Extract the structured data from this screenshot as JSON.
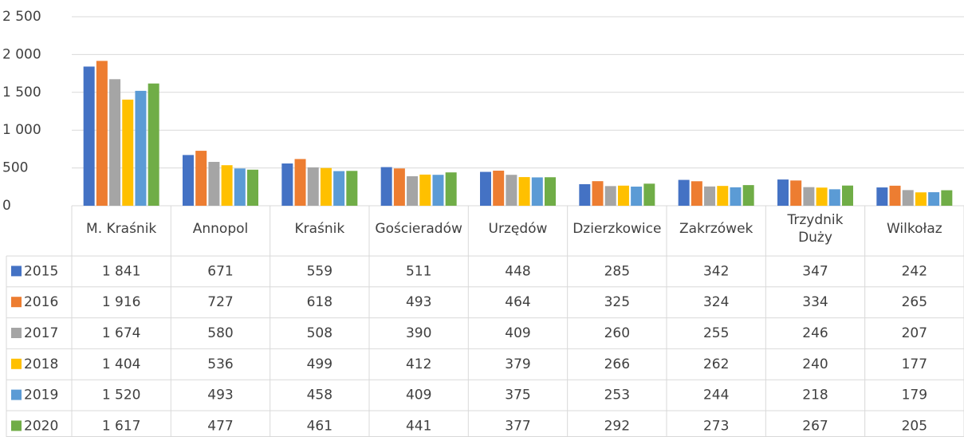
{
  "chart_data": {
    "type": "bar",
    "categories": [
      "M. Kraśnik",
      "Annopol",
      "Kraśnik",
      "Gościeradów",
      "Urzędów",
      "Dzierzkowice",
      "Zakrzówek",
      "Trzydnik Duży",
      "Wilkołaz"
    ],
    "series": [
      {
        "name": "2015",
        "color": "#4472c4",
        "values": [
          1841,
          671,
          559,
          511,
          448,
          285,
          342,
          347,
          242
        ],
        "value_labels": [
          "1 841",
          "671",
          "559",
          "511",
          "448",
          "285",
          "342",
          "347",
          "242"
        ]
      },
      {
        "name": "2016",
        "color": "#ed7d31",
        "values": [
          1916,
          727,
          618,
          493,
          464,
          325,
          324,
          334,
          265
        ],
        "value_labels": [
          "1 916",
          "727",
          "618",
          "493",
          "464",
          "325",
          "324",
          "334",
          "265"
        ]
      },
      {
        "name": "2017",
        "color": "#a5a5a5",
        "values": [
          1674,
          580,
          508,
          390,
          409,
          260,
          255,
          246,
          207
        ],
        "value_labels": [
          "1 674",
          "580",
          "508",
          "390",
          "409",
          "260",
          "255",
          "246",
          "207"
        ]
      },
      {
        "name": "2018",
        "color": "#ffc000",
        "values": [
          1404,
          536,
          499,
          412,
          379,
          266,
          262,
          240,
          177
        ],
        "value_labels": [
          "1 404",
          "536",
          "499",
          "412",
          "379",
          "266",
          "262",
          "240",
          "177"
        ]
      },
      {
        "name": "2019",
        "color": "#5b9bd5",
        "values": [
          1520,
          493,
          458,
          409,
          375,
          253,
          244,
          218,
          179
        ],
        "value_labels": [
          "1 520",
          "493",
          "458",
          "409",
          "375",
          "253",
          "244",
          "218",
          "179"
        ]
      },
      {
        "name": "2020",
        "color": "#70ad47",
        "values": [
          1617,
          477,
          461,
          441,
          377,
          292,
          273,
          267,
          205
        ],
        "value_labels": [
          "1 617",
          "477",
          "461",
          "441",
          "377",
          "292",
          "273",
          "267",
          "205"
        ]
      }
    ],
    "ylim": [
      0,
      2500
    ],
    "yticks": [
      0,
      500,
      {
        "value": 1000,
        "label": "1 000"
      },
      {
        "value": 1500,
        "label": "1 500"
      },
      {
        "value": 2000,
        "label": "2 000"
      },
      {
        "value": 2500,
        "label": "2 500"
      }
    ],
    "grid": true
  }
}
